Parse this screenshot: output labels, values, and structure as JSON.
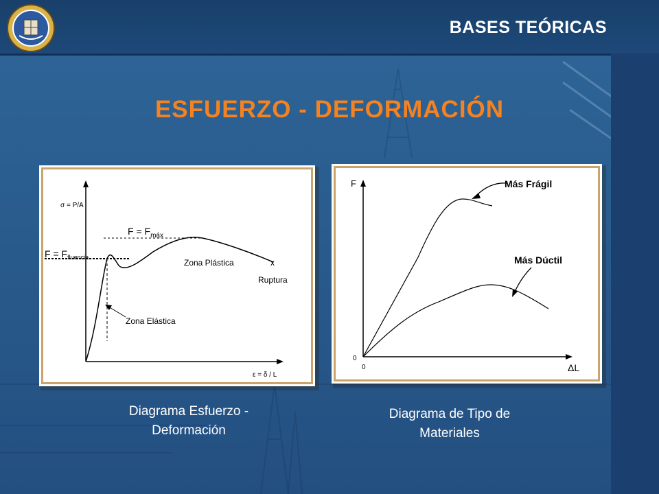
{
  "header": {
    "title": "BASES TEÓRICAS"
  },
  "main": {
    "title": "ESFUERZO - DEFORMACIÓN"
  },
  "left_diagram": {
    "y_axis_label": "σ = P/A",
    "x_axis_label": "ε = δ / L",
    "fmax_label": "F = F",
    "fmax_sub": "máx",
    "fluencia_label": "F = F",
    "fluencia_sub": "fluencia",
    "plastic_zone": "Zona Plástica",
    "elastic_zone": "Zona Elástica",
    "rupture": "Ruptura",
    "rupture_mark": "x",
    "caption_line1": "Diagrama Esfuerzo -",
    "caption_line2": "Deformación"
  },
  "right_diagram": {
    "y_axis_label": "F",
    "x_axis_label": "ΔL",
    "y_origin": "0",
    "x_origin": "0",
    "fragile_label": "Más Frágil",
    "ductile_label": "Más Dúctil",
    "caption_line1": "Diagrama de Tipo de",
    "caption_line2": "Materiales"
  },
  "colors": {
    "accent": "#f58220",
    "background": "#285a8c",
    "header": "#18406a",
    "panel_border": "#c9a46c"
  }
}
